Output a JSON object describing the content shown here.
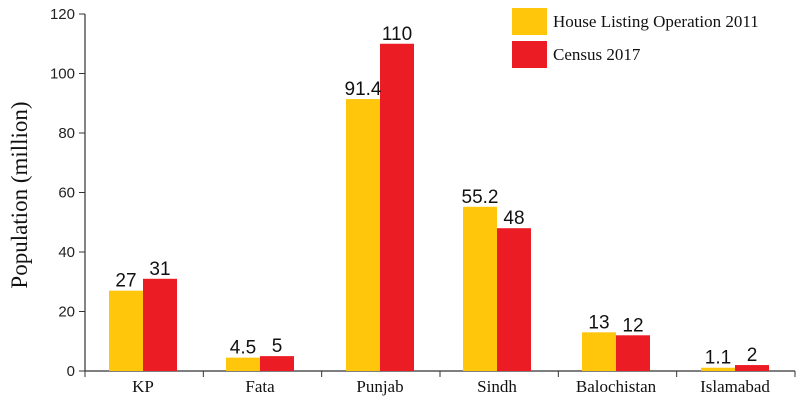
{
  "chart_data": {
    "type": "bar",
    "title": "",
    "xlabel": "",
    "ylabel": "Population (million)",
    "ylim": [
      0,
      120
    ],
    "yticks": [
      0,
      20,
      40,
      60,
      80,
      100,
      120
    ],
    "categories": [
      "KP",
      "Fata",
      "Punjab",
      "Sindh",
      "Balochistan",
      "Islamabad"
    ],
    "series": [
      {
        "name": "House Listing Operation 2011",
        "color": "#FFC60B",
        "values": [
          27,
          4.5,
          91.4,
          55.2,
          13,
          1.1
        ],
        "labels": [
          "27",
          "4.5",
          "91.4",
          "55.2",
          "13",
          "1.1"
        ]
      },
      {
        "name": "Census 2017",
        "color": "#EC1C24",
        "values": [
          31,
          5,
          110,
          48,
          12,
          2
        ],
        "labels": [
          "31",
          "5",
          "110",
          "48",
          "12",
          "2"
        ]
      }
    ],
    "grid": false,
    "legend_position": "top-right"
  }
}
